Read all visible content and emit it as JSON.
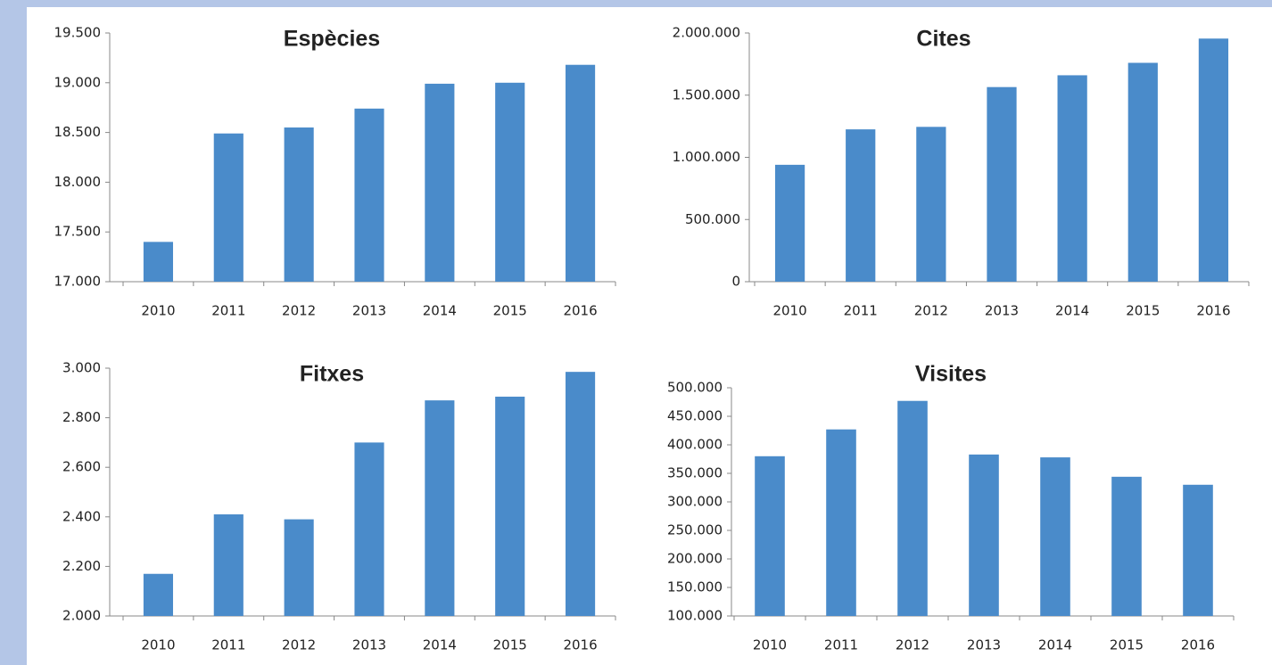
{
  "chart_data": [
    {
      "type": "bar",
      "title": "Espècies",
      "categories": [
        "2010",
        "2011",
        "2012",
        "2013",
        "2014",
        "2015",
        "2016"
      ],
      "values": [
        17400,
        18490,
        18550,
        18740,
        18990,
        19000,
        19180
      ],
      "color": "#4a8bca",
      "ylim": [
        17000,
        19500
      ],
      "yticks": [
        {
          "value": 17000,
          "label": "17.000"
        },
        {
          "value": 17500,
          "label": "17.500"
        },
        {
          "value": 18000,
          "label": "18.000"
        },
        {
          "value": 18500,
          "label": "18.500"
        },
        {
          "value": 19000,
          "label": "19.000"
        },
        {
          "value": 19500,
          "label": "19.500"
        }
      ],
      "grid": false
    },
    {
      "type": "bar",
      "title": "Cites",
      "categories": [
        "2010",
        "2011",
        "2012",
        "2013",
        "2014",
        "2015",
        "2016"
      ],
      "values": [
        940000,
        1225000,
        1245000,
        1565000,
        1660000,
        1760000,
        1955000
      ],
      "color": "#4a8bca",
      "ylim": [
        0,
        2000000
      ],
      "yticks": [
        0,
        {
          "value": 500000,
          "label": "500.000"
        },
        {
          "value": 1000000,
          "label": "1.000.000"
        },
        {
          "value": 1500000,
          "label": "1.500.000"
        },
        {
          "value": 2000000,
          "label": "2.000.000"
        }
      ],
      "grid": false
    },
    {
      "type": "bar",
      "title": "Fitxes",
      "categories": [
        "2010",
        "2011",
        "2012",
        "2013",
        "2014",
        "2015",
        "2016"
      ],
      "values": [
        2170,
        2410,
        2390,
        2700,
        2870,
        2885,
        2985
      ],
      "color": "#4a8bca",
      "ylim": [
        2000,
        3000
      ],
      "yticks": [
        {
          "value": 2000,
          "label": "2.000"
        },
        {
          "value": 2200,
          "label": "2.200"
        },
        {
          "value": 2400,
          "label": "2.400"
        },
        {
          "value": 2600,
          "label": "2.600"
        },
        {
          "value": 2800,
          "label": "2.800"
        },
        {
          "value": 3000,
          "label": "3.000"
        }
      ],
      "grid": false
    },
    {
      "type": "bar",
      "title": "Visites",
      "categories": [
        "2010",
        "2011",
        "2012",
        "2013",
        "2014",
        "2015",
        "2016"
      ],
      "values": [
        380000,
        427000,
        477000,
        383000,
        378000,
        344000,
        330000
      ],
      "color": "#4a8bca",
      "ylim": [
        100000,
        500000
      ],
      "yticks": [
        {
          "value": 100000,
          "label": "100.000"
        },
        {
          "value": 150000,
          "label": "150.000"
        },
        {
          "value": 200000,
          "label": "200.000"
        },
        {
          "value": 250000,
          "label": "250.000"
        },
        {
          "value": 300000,
          "label": "300.000"
        },
        {
          "value": 350000,
          "label": "350.000"
        },
        {
          "value": 400000,
          "label": "400.000"
        },
        {
          "value": 450000,
          "label": "450.000"
        },
        {
          "value": 500000,
          "label": "500.000"
        }
      ],
      "grid": false
    }
  ]
}
